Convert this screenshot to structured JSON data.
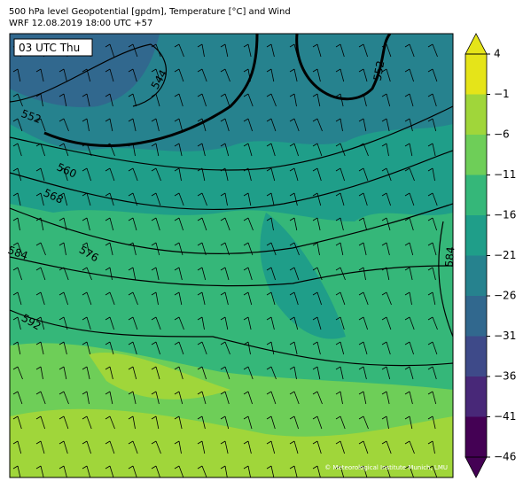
{
  "header": {
    "title": "500 hPa level Geopotential [gpdm], Temperature [°C] and Wind",
    "subtitle": "WRF 12.08.2019 18:00 UTC +57"
  },
  "map": {
    "time_label": "03 UTC Thu",
    "copyright": "© Meteorological Institute Munich, LMU",
    "contour_labels": [
      "544",
      "552",
      "560",
      "568",
      "576",
      "584",
      "592",
      "552",
      "584"
    ]
  },
  "colorbar": {
    "lim": [
      -46,
      4
    ],
    "ticks": [
      {
        "value": -46,
        "label": "−46"
      },
      {
        "value": -41,
        "label": "−41"
      },
      {
        "value": -36,
        "label": "−36"
      },
      {
        "value": -31,
        "label": "−31"
      },
      {
        "value": -26,
        "label": "−26"
      },
      {
        "value": -21,
        "label": "−21"
      },
      {
        "value": -16,
        "label": "−16"
      },
      {
        "value": -11,
        "label": "−11"
      },
      {
        "value": -6,
        "label": "−6"
      },
      {
        "value": -1,
        "label": "−1"
      },
      4
    ],
    "colors": [
      "#440154",
      "#482878",
      "#3e4a89",
      "#31688e",
      "#26828e",
      "#1f9e89",
      "#35b779",
      "#6ece58",
      "#a0d63a",
      "#e5e419"
    ]
  }
}
